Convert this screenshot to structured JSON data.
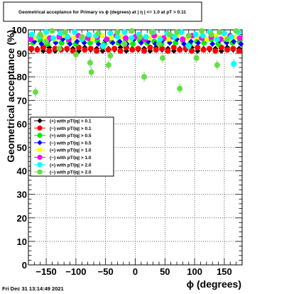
{
  "chart_data": {
    "type": "scatter",
    "title": "Geometrical acceptance for Primary vs ϕ (degrees) at | η | <= 1.0 at pT > 0.11",
    "xlabel": "ϕ (degrees)",
    "ylabel": "Geometrical acceptance (%)",
    "xlim": [
      -180,
      180
    ],
    "ylim": [
      0,
      100
    ],
    "x_ticks": [
      -150,
      -100,
      -50,
      0,
      50,
      100,
      150
    ],
    "x_tick_labels": [
      "−150",
      "−100",
      "−50",
      "0",
      "50",
      "100",
      "150"
    ],
    "y_ticks": [
      0,
      10,
      20,
      30,
      40,
      50,
      60,
      70,
      80,
      90,
      100
    ],
    "grid": true,
    "legend_position": "left",
    "timestamp": "Fri Dec 31 13:14:49 2021",
    "series": [
      {
        "name": "(+) with pT/|q| > 0.1",
        "color": "#000000",
        "marker": "diamond",
        "points": [
          [
            -175,
            91.5
          ],
          [
            -165,
            92.0
          ],
          [
            -155,
            91.0
          ],
          [
            -145,
            92.5
          ],
          [
            -135,
            91.0
          ],
          [
            -125,
            92.0
          ],
          [
            -115,
            91.5
          ],
          [
            -105,
            92.0
          ],
          [
            -95,
            91.0
          ],
          [
            -85,
            92.5
          ],
          [
            -75,
            91.5
          ],
          [
            -65,
            92.0
          ],
          [
            -55,
            91.0
          ],
          [
            -45,
            92.0
          ],
          [
            -35,
            91.5
          ],
          [
            -25,
            92.5
          ],
          [
            -15,
            91.0
          ],
          [
            -5,
            92.0
          ],
          [
            5,
            91.5
          ],
          [
            15,
            92.0
          ],
          [
            25,
            91.0
          ],
          [
            35,
            92.5
          ],
          [
            45,
            91.5
          ],
          [
            55,
            92.0
          ],
          [
            65,
            91.0
          ],
          [
            75,
            92.0
          ],
          [
            85,
            91.5
          ],
          [
            95,
            92.5
          ],
          [
            105,
            91.0
          ],
          [
            115,
            92.0
          ],
          [
            125,
            91.5
          ],
          [
            135,
            92.0
          ],
          [
            145,
            91.0
          ],
          [
            155,
            92.5
          ],
          [
            165,
            91.5
          ],
          [
            175,
            92.0
          ]
        ]
      },
      {
        "name": "(−) with pT/|q| > 0.1",
        "color": "#ff0000",
        "marker": "circle",
        "points": [
          [
            -175,
            92.0
          ],
          [
            -165,
            91.5
          ],
          [
            -155,
            92.5
          ],
          [
            -145,
            91.0
          ],
          [
            -135,
            92.0
          ],
          [
            -125,
            91.5
          ],
          [
            -115,
            92.0
          ],
          [
            -105,
            91.0
          ],
          [
            -95,
            92.5
          ],
          [
            -85,
            91.5
          ],
          [
            -75,
            92.0
          ],
          [
            -65,
            91.0
          ],
          [
            -55,
            92.5
          ],
          [
            -45,
            91.5
          ],
          [
            -35,
            92.0
          ],
          [
            -25,
            91.0
          ],
          [
            -15,
            92.5
          ],
          [
            -5,
            91.5
          ],
          [
            5,
            92.0
          ],
          [
            15,
            91.0
          ],
          [
            25,
            92.5
          ],
          [
            35,
            91.5
          ],
          [
            45,
            92.0
          ],
          [
            55,
            91.0
          ],
          [
            65,
            92.5
          ],
          [
            75,
            91.5
          ],
          [
            85,
            92.0
          ],
          [
            95,
            91.0
          ],
          [
            105,
            92.5
          ],
          [
            115,
            91.5
          ],
          [
            125,
            92.0
          ],
          [
            135,
            91.0
          ],
          [
            145,
            92.5
          ],
          [
            155,
            91.5
          ],
          [
            165,
            92.0
          ],
          [
            175,
            91.0
          ]
        ]
      },
      {
        "name": "(+) with pT/|q| > 0.5",
        "color": "#00ee00",
        "marker": "circle",
        "points": [
          [
            -172,
            94.5
          ],
          [
            -160,
            95.5
          ],
          [
            -148,
            94.0
          ],
          [
            -136,
            96.0
          ],
          [
            -124,
            94.5
          ],
          [
            -112,
            95.0
          ],
          [
            -100,
            94.0
          ],
          [
            -88,
            96.0
          ],
          [
            -76,
            94.5
          ],
          [
            -64,
            95.5
          ],
          [
            -52,
            94.0
          ],
          [
            -40,
            95.0
          ],
          [
            -28,
            94.5
          ],
          [
            -16,
            96.0
          ],
          [
            -4,
            94.0
          ],
          [
            8,
            95.5
          ],
          [
            20,
            94.5
          ],
          [
            32,
            95.0
          ],
          [
            44,
            94.0
          ],
          [
            56,
            96.0
          ],
          [
            68,
            94.5
          ],
          [
            80,
            95.5
          ],
          [
            92,
            94.0
          ],
          [
            104,
            95.0
          ],
          [
            116,
            94.5
          ],
          [
            128,
            96.0
          ],
          [
            140,
            94.0
          ],
          [
            152,
            95.5
          ],
          [
            164,
            94.5
          ],
          [
            176,
            95.0
          ]
        ]
      },
      {
        "name": "(−) with pT/|q| > 0.5",
        "color": "#0000ff",
        "marker": "diamond",
        "points": [
          [
            -170,
            95.0
          ],
          [
            -158,
            94.0
          ],
          [
            -146,
            95.5
          ],
          [
            -134,
            94.5
          ],
          [
            -122,
            96.0
          ],
          [
            -110,
            94.0
          ],
          [
            -98,
            95.0
          ],
          [
            -86,
            94.5
          ],
          [
            -74,
            96.0
          ],
          [
            -62,
            94.0
          ],
          [
            -50,
            95.5
          ],
          [
            -38,
            94.5
          ],
          [
            -26,
            95.0
          ],
          [
            -14,
            94.0
          ],
          [
            -2,
            96.0
          ],
          [
            10,
            94.5
          ],
          [
            22,
            95.0
          ],
          [
            34,
            94.0
          ],
          [
            46,
            95.5
          ],
          [
            58,
            94.5
          ],
          [
            70,
            96.0
          ],
          [
            82,
            94.0
          ],
          [
            94,
            95.0
          ],
          [
            106,
            94.5
          ],
          [
            118,
            96.0
          ],
          [
            130,
            94.0
          ],
          [
            142,
            95.5
          ],
          [
            154,
            94.5
          ],
          [
            166,
            95.0
          ],
          [
            178,
            94.0
          ]
        ]
      },
      {
        "name": "(+) with pT/|q| > 1.0",
        "color": "#ffff00",
        "marker": "square",
        "points": [
          [
            -168,
            96.5
          ],
          [
            -152,
            97.0
          ],
          [
            -136,
            96.0
          ],
          [
            -120,
            97.5
          ],
          [
            -104,
            96.5
          ],
          [
            -88,
            97.0
          ],
          [
            -72,
            96.0
          ],
          [
            -56,
            97.5
          ],
          [
            -40,
            96.5
          ],
          [
            -24,
            97.0
          ],
          [
            -8,
            96.0
          ],
          [
            8,
            97.5
          ],
          [
            24,
            96.5
          ],
          [
            40,
            97.0
          ],
          [
            56,
            96.0
          ],
          [
            72,
            97.5
          ],
          [
            88,
            96.5
          ],
          [
            104,
            97.0
          ],
          [
            120,
            96.0
          ],
          [
            136,
            97.5
          ],
          [
            152,
            96.5
          ],
          [
            168,
            97.0
          ]
        ]
      },
      {
        "name": "(−) with pT/|q| > 1.0",
        "color": "#ff00ff",
        "marker": "circle",
        "points": [
          [
            -176,
            96.0
          ],
          [
            -160,
            97.5
          ],
          [
            -144,
            96.5
          ],
          [
            -128,
            97.0
          ],
          [
            -112,
            96.0
          ],
          [
            -96,
            97.5
          ],
          [
            -80,
            96.5
          ],
          [
            -64,
            97.0
          ],
          [
            -48,
            96.0
          ],
          [
            -32,
            97.5
          ],
          [
            -16,
            96.5
          ],
          [
            0,
            97.0
          ],
          [
            16,
            96.0
          ],
          [
            32,
            97.5
          ],
          [
            48,
            96.5
          ],
          [
            64,
            97.0
          ],
          [
            80,
            96.0
          ],
          [
            96,
            97.5
          ],
          [
            112,
            96.5
          ],
          [
            128,
            97.0
          ],
          [
            144,
            96.0
          ],
          [
            160,
            97.5
          ],
          [
            176,
            96.5
          ]
        ]
      },
      {
        "name": "(+) with pT/|q| > 2.0",
        "color": "#00ffff",
        "marker": "circle",
        "points": [
          [
            -174,
            98.0
          ],
          [
            -162,
            97.0
          ],
          [
            -150,
            99.0
          ],
          [
            -138,
            96.5
          ],
          [
            -126,
            98.5
          ],
          [
            -114,
            97.0
          ],
          [
            -102,
            99.0
          ],
          [
            -90,
            96.0
          ],
          [
            -78,
            98.0
          ],
          [
            -66,
            97.5
          ],
          [
            -54,
            93.0
          ],
          [
            -42,
            98.5
          ],
          [
            -30,
            97.0
          ],
          [
            -18,
            99.0
          ],
          [
            -6,
            96.5
          ],
          [
            6,
            98.0
          ],
          [
            18,
            97.0
          ],
          [
            30,
            99.0
          ],
          [
            42,
            96.0
          ],
          [
            54,
            98.5
          ],
          [
            66,
            97.0
          ],
          [
            78,
            99.0
          ],
          [
            90,
            93.0
          ],
          [
            102,
            98.0
          ],
          [
            114,
            97.5
          ],
          [
            126,
            99.0
          ],
          [
            138,
            96.0
          ],
          [
            150,
            98.5
          ],
          [
            162,
            97.0
          ],
          [
            166,
            85.5
          ],
          [
            174,
            99.0
          ]
        ]
      },
      {
        "name": "(−) with pT/|q| > 2.0",
        "color": "#66dd44",
        "marker": "circle",
        "points": [
          [
            -168,
            73.5
          ],
          [
            -160,
            98.0
          ],
          [
            -150,
            95.0
          ],
          [
            -140,
            99.5
          ],
          [
            -128,
            92.0
          ],
          [
            -118,
            99.0
          ],
          [
            -100,
            89.5
          ],
          [
            -90,
            97.0
          ],
          [
            -76,
            86.0
          ],
          [
            -74,
            82.0
          ],
          [
            -62,
            98.5
          ],
          [
            -45,
            85.0
          ],
          [
            -42,
            89.0
          ],
          [
            -30,
            99.0
          ],
          [
            -18,
            94.0
          ],
          [
            -6,
            99.5
          ],
          [
            8,
            97.0
          ],
          [
            15,
            80.0
          ],
          [
            28,
            99.0
          ],
          [
            40,
            94.0
          ],
          [
            46,
            88.0
          ],
          [
            58,
            98.0
          ],
          [
            75,
            75.0
          ],
          [
            70,
            99.0
          ],
          [
            90,
            97.5
          ],
          [
            103,
            88.0
          ],
          [
            112,
            99.5
          ],
          [
            128,
            98.0
          ],
          [
            138,
            85.0
          ],
          [
            142,
            99.0
          ],
          [
            155,
            96.0
          ],
          [
            170,
            99.5
          ]
        ]
      }
    ]
  }
}
